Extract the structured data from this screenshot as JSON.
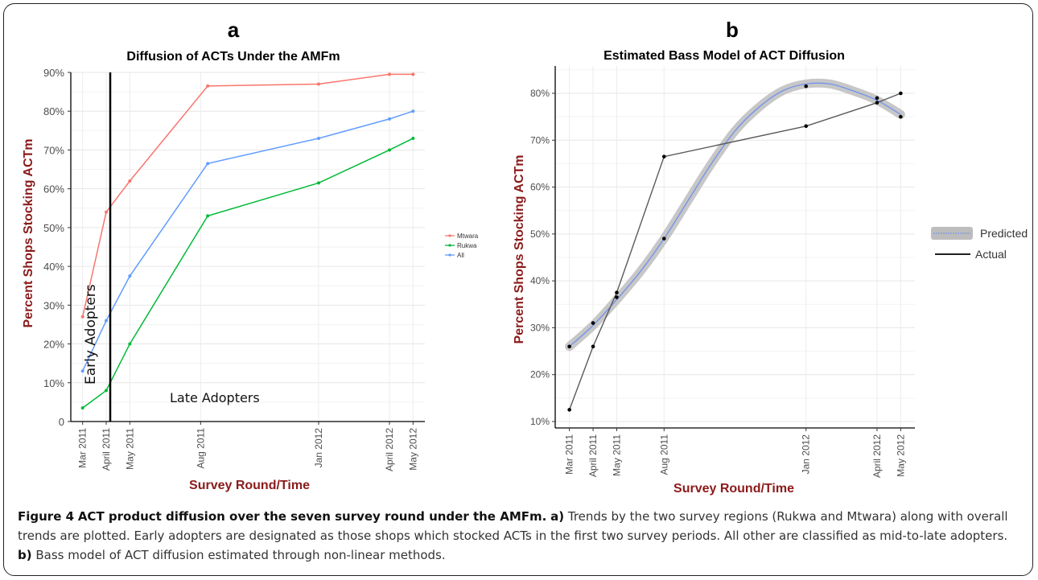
{
  "caption": {
    "figure_label": "Figure 4",
    "title": "ACT product diffusion over the seven survey round under the AMFm.",
    "a_label": "a)",
    "a_text": "Trends by the two survey regions (Rukwa and Mtwara) along with overall trends are plotted. Early adopters are designated as those shops which stocked ACTs in the first two survey periods. All other are classified as mid-to-late adopters.",
    "b_label": "b)",
    "b_text": "Bass model of ACT diffusion estimated through non-linear methods."
  },
  "colors": {
    "mtwara": "#f8766d",
    "rukwa": "#00ba38",
    "all": "#619cff",
    "predicted": "#6b8df0",
    "band": "#bdbdbd",
    "actual": "#5a5a5a",
    "axis_title": "#8b1a1a"
  },
  "chart_data": [
    {
      "panel": "a",
      "type": "line",
      "title": "Diffusion of ACTs Under the AMFm",
      "xlabel": "Survey Round/Time",
      "ylabel": "Percent Shops Stocking ACTm",
      "ylim": [
        0,
        90
      ],
      "yticks": [
        "0",
        "10%",
        "20%",
        "30%",
        "40%",
        "50%",
        "60%",
        "70%",
        "80%",
        "90%"
      ],
      "categories": [
        "Mar 2011",
        "April 2011",
        "May 2011",
        "Aug 2011",
        "Jan 2012",
        "April 2012",
        "May 2012"
      ],
      "x_months": [
        0,
        1,
        2,
        5,
        10,
        13,
        14
      ],
      "series": [
        {
          "name": "Mtwara",
          "x": [
            0,
            1,
            2,
            5.3,
            10,
            13,
            14
          ],
          "values": [
            27,
            54,
            62,
            86.5,
            87,
            89.5,
            89.5
          ]
        },
        {
          "name": "Rukwa",
          "x": [
            0,
            1,
            2,
            5.3,
            10,
            13,
            14
          ],
          "values": [
            3.5,
            8,
            20,
            53,
            61.5,
            70,
            73
          ]
        },
        {
          "name": "All",
          "x": [
            0,
            1,
            2,
            5.3,
            10,
            13,
            14
          ],
          "values": [
            13,
            26,
            37.5,
            66.5,
            73,
            78,
            80
          ]
        }
      ],
      "annotations": {
        "early": "Early Adopters",
        "late": "Late Adopters"
      },
      "legend_position": "right",
      "grid": true
    },
    {
      "panel": "b",
      "type": "line",
      "title": "Estimated Bass Model of ACT Diffusion",
      "xlabel": "Survey Round/Time",
      "ylabel": "Percent Shops Stocking ACTm",
      "ylim": [
        10,
        85
      ],
      "yticks": [
        "10%",
        "20%",
        "30%",
        "40%",
        "50%",
        "60%",
        "70%",
        "80%"
      ],
      "categories": [
        "Mar 2011",
        "April 2011",
        "May 2011",
        "Aug 2011",
        "Jan 2012",
        "April 2012",
        "May 2012"
      ],
      "x_months": [
        0,
        1,
        2,
        4,
        10,
        13,
        14
      ],
      "series": [
        {
          "name": "Actual",
          "x": [
            0,
            1,
            2,
            4,
            10,
            13,
            14
          ],
          "values": [
            12.5,
            26,
            37.5,
            66.5,
            73,
            78,
            80
          ]
        },
        {
          "name": "Predicted",
          "x": [
            0,
            1,
            2,
            4,
            10,
            13,
            14
          ],
          "values": [
            26,
            31,
            36.5,
            49,
            81.5,
            79,
            75
          ]
        }
      ],
      "predicted_curve": {
        "x": [
          0,
          1,
          2,
          3,
          4,
          5,
          6,
          7,
          8,
          9,
          10,
          11,
          12,
          13,
          14
        ],
        "values": [
          26,
          30.5,
          36,
          42,
          49,
          57,
          65,
          72,
          77,
          80.5,
          82,
          82,
          80.5,
          78.5,
          75.5
        ]
      },
      "legend": [
        "Predicted",
        "Actual"
      ],
      "legend_position": "right",
      "grid": true
    }
  ],
  "panel_letters": {
    "a": "a",
    "b": "b"
  }
}
